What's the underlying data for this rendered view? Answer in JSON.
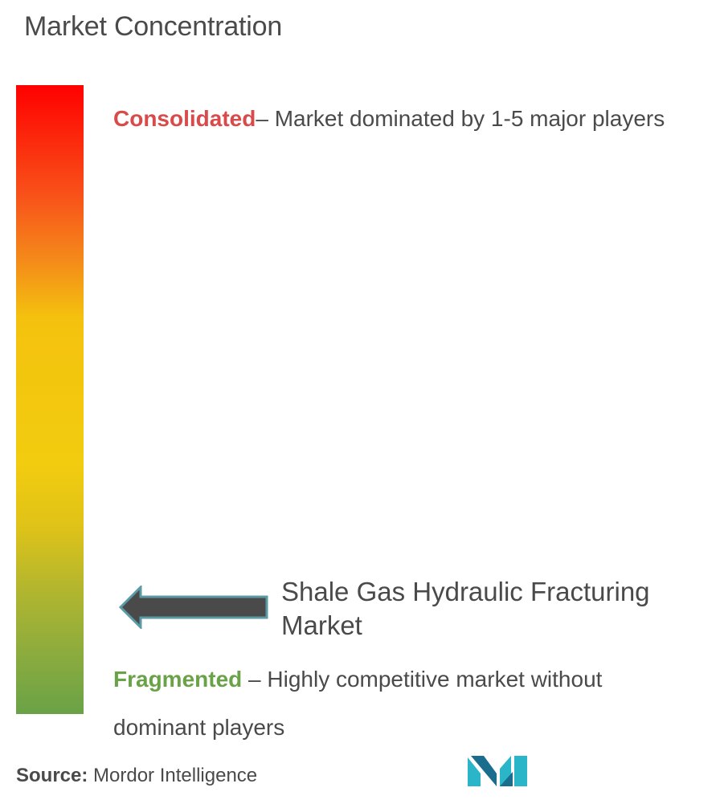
{
  "title": "Market Concentration",
  "consolidated": {
    "term": "Consolidated",
    "description": "– Market dominated by 1-5 major players"
  },
  "fragmented": {
    "term": "Fragmented",
    "description": " – Highly competitive market without dominant players"
  },
  "market_label": "Shale Gas Hydraulic Fracturing Market",
  "source": {
    "label": "Source:",
    "value": " Mordor Intelligence"
  },
  "colors": {
    "consolidated": "#d94a4a",
    "fragmented": "#6aa247",
    "gradient_top": "#ff0000",
    "gradient_middle": "#f2cc0f",
    "gradient_bottom": "#6aa247",
    "arrow_fill": "#4a4a4a",
    "arrow_outline": "#5b9ba6",
    "logo_teal": "#2bb5c8",
    "logo_dark": "#1a6d8c"
  },
  "icons": {
    "arrow": "left-arrow-icon",
    "logo": "mordor-intelligence-logo-icon"
  }
}
